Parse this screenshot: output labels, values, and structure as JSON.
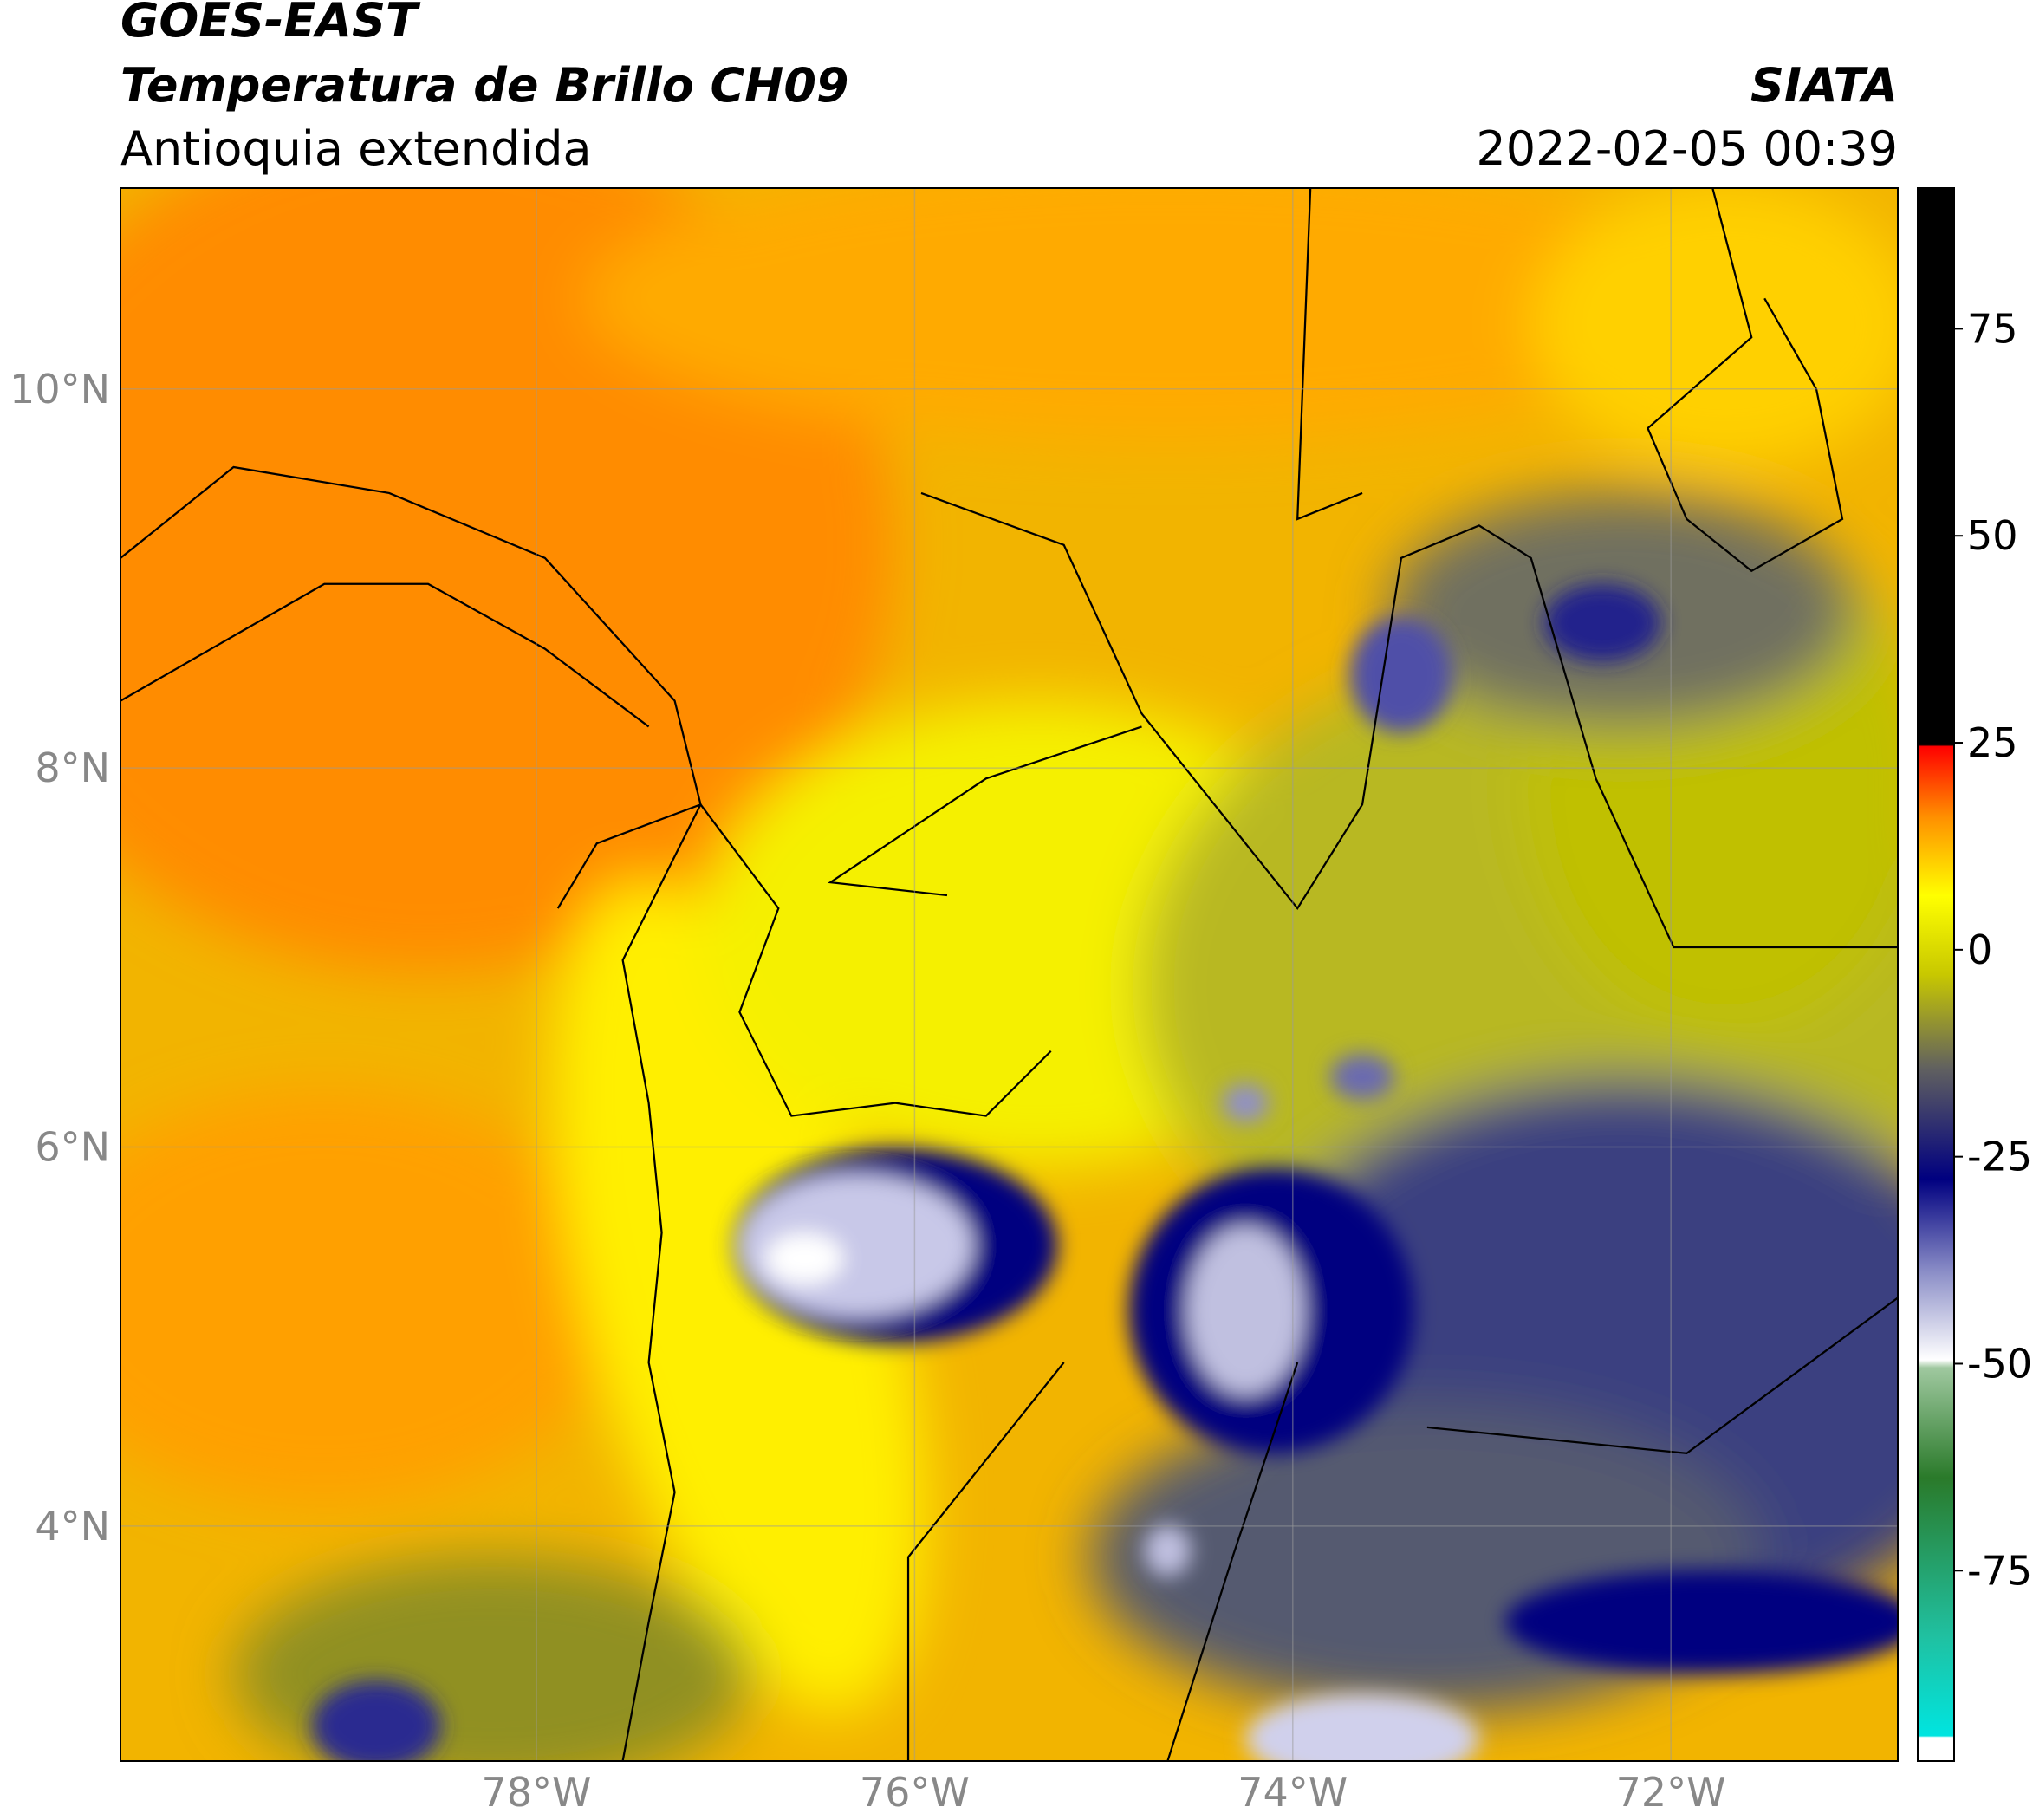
{
  "header": {
    "satellite": "GOES-EAST",
    "title": "Temperatura de Brillo CH09",
    "region": "Antioquia extendida",
    "source": "SIATA",
    "datetime": "2022-02-05 00:39"
  },
  "map": {
    "lonlim": [
      -80.2,
      -70.8
    ],
    "latlim": [
      2.76,
      11.06
    ],
    "lonticks": [
      {
        "value": -78,
        "label": "78°W"
      },
      {
        "value": -76,
        "label": "76°W"
      },
      {
        "value": -74,
        "label": "74°W"
      },
      {
        "value": -72,
        "label": "72°W"
      }
    ],
    "latticks": [
      {
        "value": 4,
        "label": "4°N"
      },
      {
        "value": 6,
        "label": "6°N"
      },
      {
        "value": 8,
        "label": "8°N"
      },
      {
        "value": 10,
        "label": "10°N"
      }
    ],
    "grid": true
  },
  "colorbar": {
    "lim": [
      -98,
      92
    ],
    "ticks": [
      75,
      50,
      25,
      0,
      -25,
      -50,
      -75
    ]
  }
}
